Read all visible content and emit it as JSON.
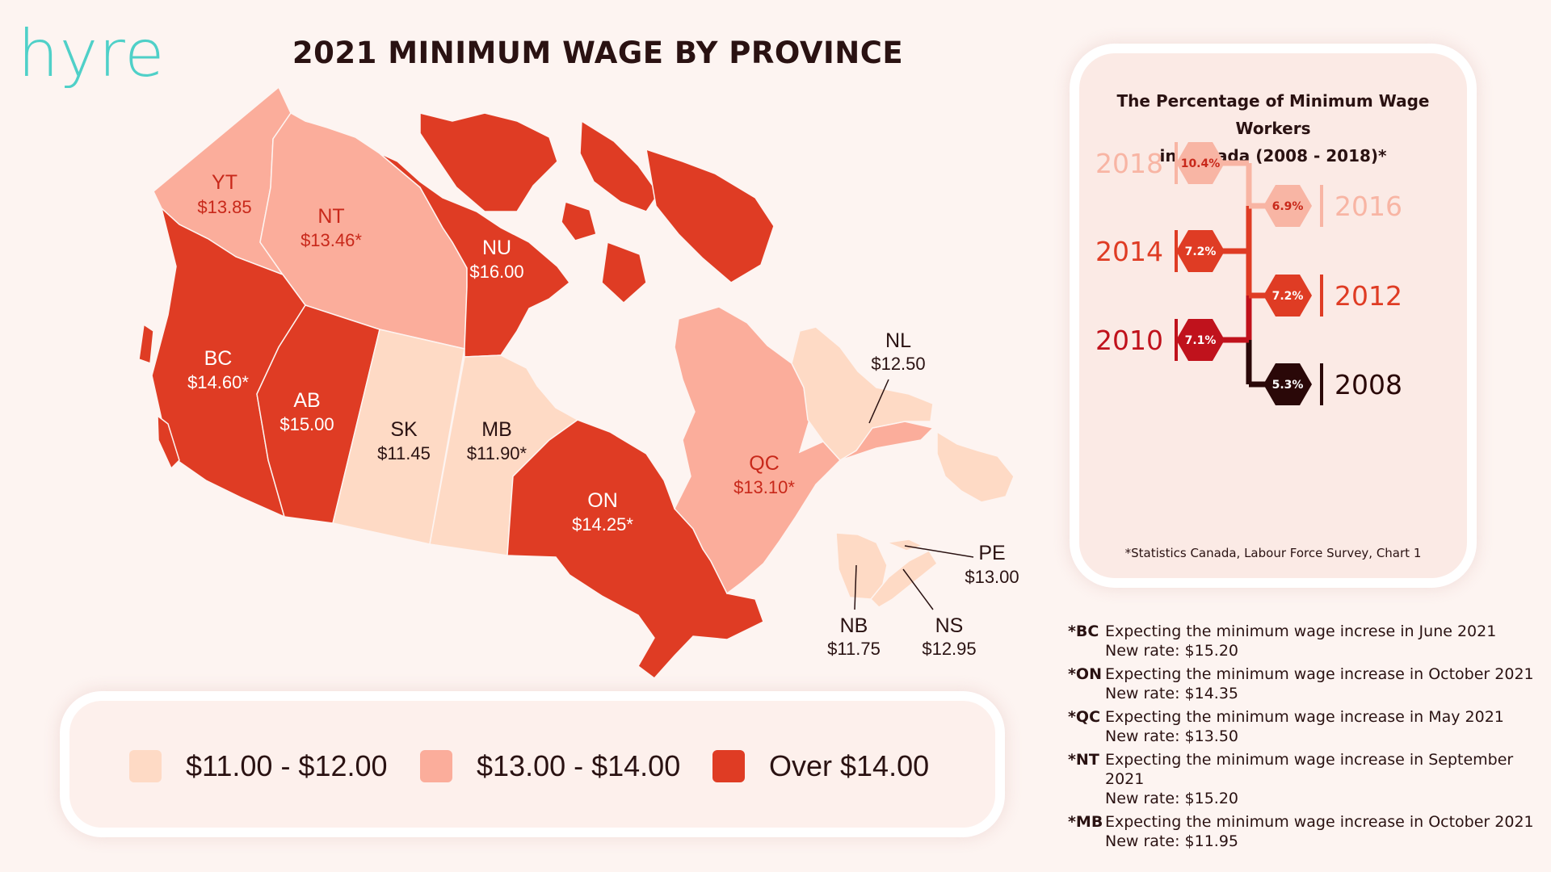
{
  "brand": {
    "logo": "hyre"
  },
  "title": "2021 MINIMUM WAGE BY PROVINCE",
  "colors": {
    "low": "#fedac5",
    "mid": "#fbad9b",
    "high": "#df3c24",
    "label_dark": "#2a1212",
    "label_red": "#c8281a"
  },
  "provinces": [
    {
      "code": "YT",
      "wage": "$13.85",
      "bracket": "mid"
    },
    {
      "code": "NT",
      "wage": "$13.46*",
      "bracket": "mid"
    },
    {
      "code": "NU",
      "wage": "$16.00",
      "bracket": "high"
    },
    {
      "code": "BC",
      "wage": "$14.60*",
      "bracket": "high"
    },
    {
      "code": "AB",
      "wage": "$15.00",
      "bracket": "high"
    },
    {
      "code": "SK",
      "wage": "$11.45",
      "bracket": "low"
    },
    {
      "code": "MB",
      "wage": "$11.90*",
      "bracket": "low"
    },
    {
      "code": "ON",
      "wage": "$14.25*",
      "bracket": "high"
    },
    {
      "code": "QC",
      "wage": "$13.10*",
      "bracket": "mid"
    },
    {
      "code": "NL",
      "wage": "$12.50",
      "bracket": "low"
    },
    {
      "code": "NB",
      "wage": "$11.75",
      "bracket": "low"
    },
    {
      "code": "NS",
      "wage": "$12.95",
      "bracket": "low"
    },
    {
      "code": "PE",
      "wage": "$13.00",
      "bracket": "low"
    }
  ],
  "legend": [
    {
      "label": "$11.00 - $12.00",
      "bracket": "low"
    },
    {
      "label": "$13.00 - $14.00",
      "bracket": "mid"
    },
    {
      "label": "Over $14.00",
      "bracket": "high"
    }
  ],
  "panel": {
    "title_line1": "The Percentage of Minimum Wage Workers",
    "title_line2": "in Canada (2008 - 2018)*",
    "note": "*Statistics Canada, Labour Force Survey, Chart 1"
  },
  "chart_data": {
    "type": "timeline",
    "title": "The Percentage of Minimum Wage Workers in Canada (2008 - 2018)*",
    "points": [
      {
        "year": "2018",
        "value": 10.4,
        "label": "10.4%",
        "color": "#f8b5a4"
      },
      {
        "year": "2016",
        "value": 6.9,
        "label": "6.9%",
        "color": "#f8b5a4"
      },
      {
        "year": "2014",
        "value": 7.2,
        "label": "7.2%",
        "color": "#df3c24"
      },
      {
        "year": "2012",
        "value": 7.2,
        "label": "7.2%",
        "color": "#df3c24"
      },
      {
        "year": "2010",
        "value": 7.1,
        "label": "7.1%",
        "color": "#c0121c"
      },
      {
        "year": "2008",
        "value": 5.3,
        "label": "5.3%",
        "color": "#2a0808"
      }
    ]
  },
  "notes": [
    {
      "key": "*BC",
      "line1": "Expecting the minimum wage increse in June 2021",
      "line2": "New rate: $15.20"
    },
    {
      "key": "*ON",
      "line1": "Expecting the minimum wage increase in October 2021",
      "line2": "New rate: $14.35"
    },
    {
      "key": "*QC",
      "line1": "Expecting the minimum wage increase in May 2021",
      "line2": "New rate: $13.50"
    },
    {
      "key": "*NT",
      "line1": "Expecting the minimum wage increase in September 2021",
      "line2": "New rate: $15.20"
    },
    {
      "key": "*MB",
      "line1": "Expecting the minimum wage increase in October 2021",
      "line2": "New rate: $11.95"
    }
  ]
}
